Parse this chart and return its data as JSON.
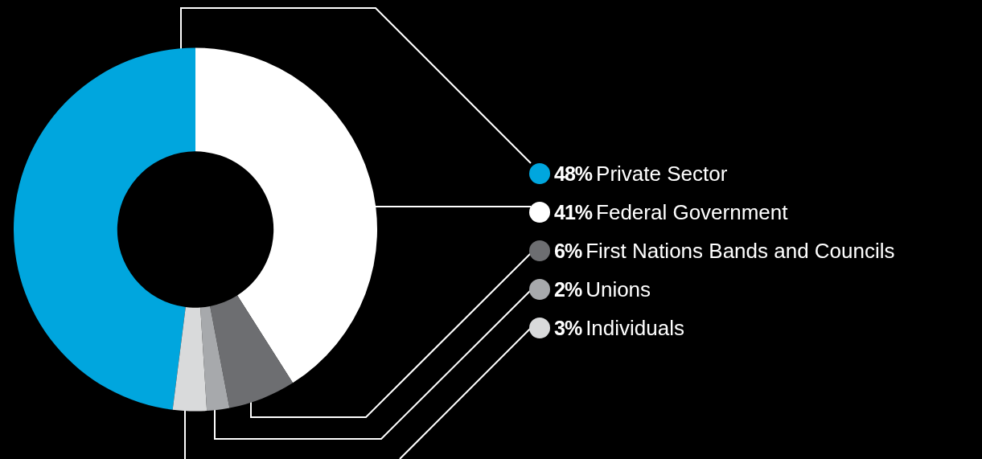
{
  "chart_data": {
    "type": "donut",
    "categories": [
      "Private Sector",
      "Federal Government",
      "First Nations Bands and Councils",
      "Unions",
      "Individuals"
    ],
    "values": [
      48,
      41,
      6,
      2,
      3
    ],
    "value_labels": [
      "48%",
      "41%",
      "6%",
      "2%",
      "3%"
    ],
    "colors": [
      "#00a6de",
      "#ffffff",
      "#6d6e71",
      "#a7a9ac",
      "#d9dadb"
    ],
    "legend": "right"
  }
}
